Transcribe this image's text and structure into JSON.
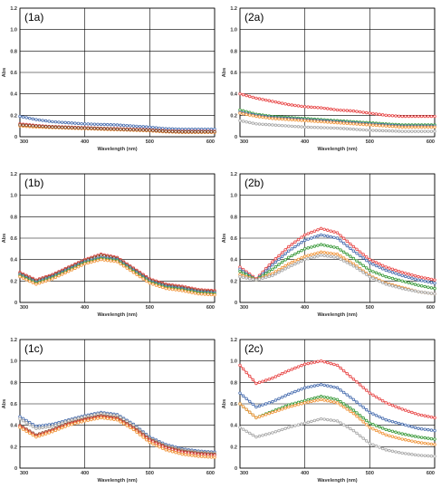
{
  "chart_data": [
    {
      "type": "line",
      "panel_label": "(1a)",
      "xlabel": "Wavelength (nm)",
      "ylabel": "Abs",
      "xlim": [
        300,
        600
      ],
      "ylim": [
        0,
        1.2
      ],
      "x_ticks": [
        "300",
        "400",
        "500",
        "600"
      ],
      "y_ticks": [
        "0",
        "0.2",
        "0.4",
        "0.6",
        "0.8",
        "1.0",
        "1.2"
      ],
      "x": [
        300,
        325,
        350,
        375,
        400,
        425,
        450,
        475,
        500,
        525,
        550,
        575,
        600
      ],
      "series": [
        {
          "color": "#4a6fb0",
          "values": [
            0.19,
            0.16,
            0.14,
            0.13,
            0.12,
            0.115,
            0.11,
            0.1,
            0.09,
            0.075,
            0.07,
            0.07,
            0.07
          ]
        },
        {
          "color": "#d94040",
          "values": [
            0.12,
            0.105,
            0.095,
            0.09,
            0.085,
            0.08,
            0.075,
            0.07,
            0.065,
            0.055,
            0.05,
            0.05,
            0.05
          ]
        },
        {
          "color": "#3a9a3a",
          "values": [
            0.11,
            0.095,
            0.09,
            0.085,
            0.08,
            0.075,
            0.07,
            0.065,
            0.06,
            0.05,
            0.045,
            0.045,
            0.045
          ]
        },
        {
          "color": "#f0963c",
          "values": [
            0.1,
            0.09,
            0.085,
            0.08,
            0.075,
            0.07,
            0.065,
            0.06,
            0.055,
            0.045,
            0.04,
            0.04,
            0.04
          ]
        },
        {
          "color": "#8a4a2a",
          "values": [
            0.11,
            0.1,
            0.09,
            0.085,
            0.08,
            0.075,
            0.07,
            0.065,
            0.06,
            0.05,
            0.045,
            0.045,
            0.045
          ]
        }
      ]
    },
    {
      "type": "line",
      "panel_label": "(2a)",
      "xlabel": "Wavelength (nm)",
      "ylabel": "Abs",
      "xlim": [
        300,
        600
      ],
      "ylim": [
        0,
        1.2
      ],
      "x_ticks": [
        "300",
        "400",
        "500",
        "600"
      ],
      "y_ticks": [
        "0",
        "0.2",
        "0.4",
        "0.6",
        "0.8",
        "1.0",
        "1.2"
      ],
      "x": [
        300,
        325,
        350,
        375,
        400,
        425,
        450,
        475,
        500,
        525,
        550,
        575,
        600
      ],
      "series": [
        {
          "color": "#e84848",
          "values": [
            0.4,
            0.36,
            0.33,
            0.3,
            0.28,
            0.27,
            0.25,
            0.24,
            0.22,
            0.2,
            0.19,
            0.19,
            0.19
          ]
        },
        {
          "color": "#3a9a3a",
          "values": [
            0.25,
            0.21,
            0.19,
            0.18,
            0.17,
            0.16,
            0.15,
            0.14,
            0.13,
            0.12,
            0.11,
            0.11,
            0.11
          ]
        },
        {
          "color": "#4a6fb0",
          "values": [
            0.23,
            0.2,
            0.18,
            0.17,
            0.16,
            0.15,
            0.14,
            0.13,
            0.12,
            0.11,
            0.1,
            0.1,
            0.1
          ]
        },
        {
          "color": "#f0963c",
          "values": [
            0.22,
            0.19,
            0.17,
            0.16,
            0.15,
            0.14,
            0.13,
            0.12,
            0.11,
            0.1,
            0.09,
            0.09,
            0.09
          ]
        },
        {
          "color": "#a8a8a8",
          "values": [
            0.15,
            0.12,
            0.11,
            0.1,
            0.09,
            0.085,
            0.08,
            0.07,
            0.06,
            0.055,
            0.05,
            0.05,
            0.05
          ]
        }
      ]
    },
    {
      "type": "line",
      "panel_label": "(1b)",
      "xlabel": "Wavelength (nm)",
      "ylabel": "Abs",
      "xlim": [
        300,
        600
      ],
      "ylim": [
        0,
        1.2
      ],
      "x_ticks": [
        "300",
        "400",
        "500",
        "600"
      ],
      "y_ticks": [
        "0",
        "0.2",
        "0.4",
        "0.6",
        "0.8",
        "1.0",
        "1.2"
      ],
      "x": [
        300,
        325,
        350,
        375,
        400,
        425,
        450,
        475,
        500,
        525,
        550,
        575,
        600
      ],
      "series": [
        {
          "color": "#d94040",
          "values": [
            0.28,
            0.21,
            0.26,
            0.33,
            0.4,
            0.45,
            0.42,
            0.32,
            0.22,
            0.17,
            0.15,
            0.12,
            0.11
          ]
        },
        {
          "color": "#8a4a2a",
          "values": [
            0.27,
            0.2,
            0.25,
            0.32,
            0.39,
            0.44,
            0.41,
            0.31,
            0.21,
            0.16,
            0.14,
            0.11,
            0.1
          ]
        },
        {
          "color": "#4a6fb0",
          "values": [
            0.26,
            0.19,
            0.24,
            0.31,
            0.38,
            0.42,
            0.4,
            0.3,
            0.2,
            0.15,
            0.13,
            0.1,
            0.09
          ]
        },
        {
          "color": "#3a9a3a",
          "values": [
            0.25,
            0.18,
            0.23,
            0.3,
            0.37,
            0.41,
            0.39,
            0.29,
            0.19,
            0.14,
            0.12,
            0.09,
            0.08
          ]
        },
        {
          "color": "#f0963c",
          "values": [
            0.24,
            0.17,
            0.22,
            0.29,
            0.36,
            0.4,
            0.38,
            0.28,
            0.18,
            0.13,
            0.11,
            0.08,
            0.07
          ]
        }
      ]
    },
    {
      "type": "line",
      "panel_label": "(2b)",
      "xlabel": "Wavelength (nm)",
      "ylabel": "Abs",
      "xlim": [
        300,
        600
      ],
      "ylim": [
        0,
        1.2
      ],
      "x_ticks": [
        "300",
        "400",
        "500",
        "600"
      ],
      "y_ticks": [
        "0",
        "0.2",
        "0.4",
        "0.6",
        "0.8",
        "1.0",
        "1.2"
      ],
      "x": [
        300,
        325,
        350,
        375,
        400,
        425,
        450,
        475,
        500,
        525,
        550,
        575,
        600
      ],
      "series": [
        {
          "color": "#e84848",
          "values": [
            0.33,
            0.22,
            0.38,
            0.52,
            0.63,
            0.69,
            0.65,
            0.52,
            0.4,
            0.33,
            0.28,
            0.24,
            0.21
          ]
        },
        {
          "color": "#4a6fb0",
          "values": [
            0.31,
            0.21,
            0.35,
            0.48,
            0.58,
            0.63,
            0.6,
            0.48,
            0.37,
            0.3,
            0.25,
            0.21,
            0.18
          ]
        },
        {
          "color": "#3a9a3a",
          "values": [
            0.29,
            0.21,
            0.31,
            0.42,
            0.5,
            0.54,
            0.51,
            0.41,
            0.3,
            0.24,
            0.2,
            0.16,
            0.13
          ]
        },
        {
          "color": "#f0963c",
          "values": [
            0.26,
            0.21,
            0.27,
            0.36,
            0.43,
            0.47,
            0.45,
            0.36,
            0.25,
            0.18,
            0.14,
            0.1,
            0.08
          ]
        },
        {
          "color": "#a8a8a8",
          "values": [
            0.24,
            0.21,
            0.25,
            0.33,
            0.4,
            0.44,
            0.42,
            0.34,
            0.24,
            0.17,
            0.13,
            0.1,
            0.08
          ]
        }
      ]
    },
    {
      "type": "line",
      "panel_label": "(1c)",
      "xlabel": "Wavelength (nm)",
      "ylabel": "Abs",
      "xlim": [
        300,
        600
      ],
      "ylim": [
        0,
        1.2
      ],
      "x_ticks": [
        "300",
        "400",
        "500",
        "600"
      ],
      "y_ticks": [
        "0",
        "0.2",
        "0.4",
        "0.6",
        "0.8",
        "1.0",
        "1.2"
      ],
      "x": [
        300,
        325,
        350,
        375,
        400,
        425,
        450,
        475,
        500,
        525,
        550,
        575,
        600
      ],
      "series": [
        {
          "color": "#4a6fb0",
          "values": [
            0.48,
            0.39,
            0.41,
            0.45,
            0.49,
            0.52,
            0.5,
            0.41,
            0.29,
            0.22,
            0.18,
            0.16,
            0.15
          ]
        },
        {
          "color": "#a8a8a8",
          "values": [
            0.46,
            0.37,
            0.39,
            0.44,
            0.48,
            0.51,
            0.49,
            0.4,
            0.28,
            0.21,
            0.17,
            0.15,
            0.14
          ]
        },
        {
          "color": "#8a4a2a",
          "values": [
            0.4,
            0.31,
            0.36,
            0.42,
            0.46,
            0.49,
            0.47,
            0.38,
            0.27,
            0.2,
            0.16,
            0.14,
            0.13
          ]
        },
        {
          "color": "#d94040",
          "values": [
            0.39,
            0.3,
            0.35,
            0.41,
            0.45,
            0.48,
            0.46,
            0.37,
            0.26,
            0.19,
            0.15,
            0.13,
            0.12
          ]
        },
        {
          "color": "#f0963c",
          "values": [
            0.38,
            0.29,
            0.34,
            0.4,
            0.44,
            0.47,
            0.45,
            0.36,
            0.24,
            0.17,
            0.13,
            0.11,
            0.1
          ]
        }
      ]
    },
    {
      "type": "line",
      "panel_label": "(2c)",
      "xlabel": "Wavelength (nm)",
      "ylabel": "Abs",
      "xlim": [
        300,
        600
      ],
      "ylim": [
        0,
        1.2
      ],
      "x_ticks": [
        "300",
        "400",
        "500",
        "600"
      ],
      "y_ticks": [
        "0",
        "0.2",
        "0.4",
        "0.6",
        "0.8",
        "1.0",
        "1.2"
      ],
      "x": [
        300,
        325,
        350,
        375,
        400,
        425,
        450,
        475,
        500,
        525,
        550,
        575,
        600
      ],
      "series": [
        {
          "color": "#e84848",
          "values": [
            0.96,
            0.79,
            0.84,
            0.91,
            0.97,
            1.0,
            0.96,
            0.83,
            0.7,
            0.61,
            0.55,
            0.5,
            0.47
          ]
        },
        {
          "color": "#4a6fb0",
          "values": [
            0.7,
            0.57,
            0.62,
            0.69,
            0.75,
            0.78,
            0.75,
            0.64,
            0.52,
            0.45,
            0.41,
            0.37,
            0.35
          ]
        },
        {
          "color": "#3a9a3a",
          "values": [
            0.6,
            0.47,
            0.53,
            0.59,
            0.63,
            0.67,
            0.64,
            0.54,
            0.42,
            0.36,
            0.32,
            0.29,
            0.27
          ]
        },
        {
          "color": "#f0963c",
          "values": [
            0.6,
            0.47,
            0.52,
            0.57,
            0.61,
            0.64,
            0.61,
            0.51,
            0.38,
            0.31,
            0.27,
            0.24,
            0.22
          ]
        },
        {
          "color": "#a8a8a8",
          "values": [
            0.38,
            0.29,
            0.33,
            0.38,
            0.42,
            0.46,
            0.44,
            0.35,
            0.23,
            0.17,
            0.14,
            0.12,
            0.11
          ]
        }
      ]
    }
  ]
}
